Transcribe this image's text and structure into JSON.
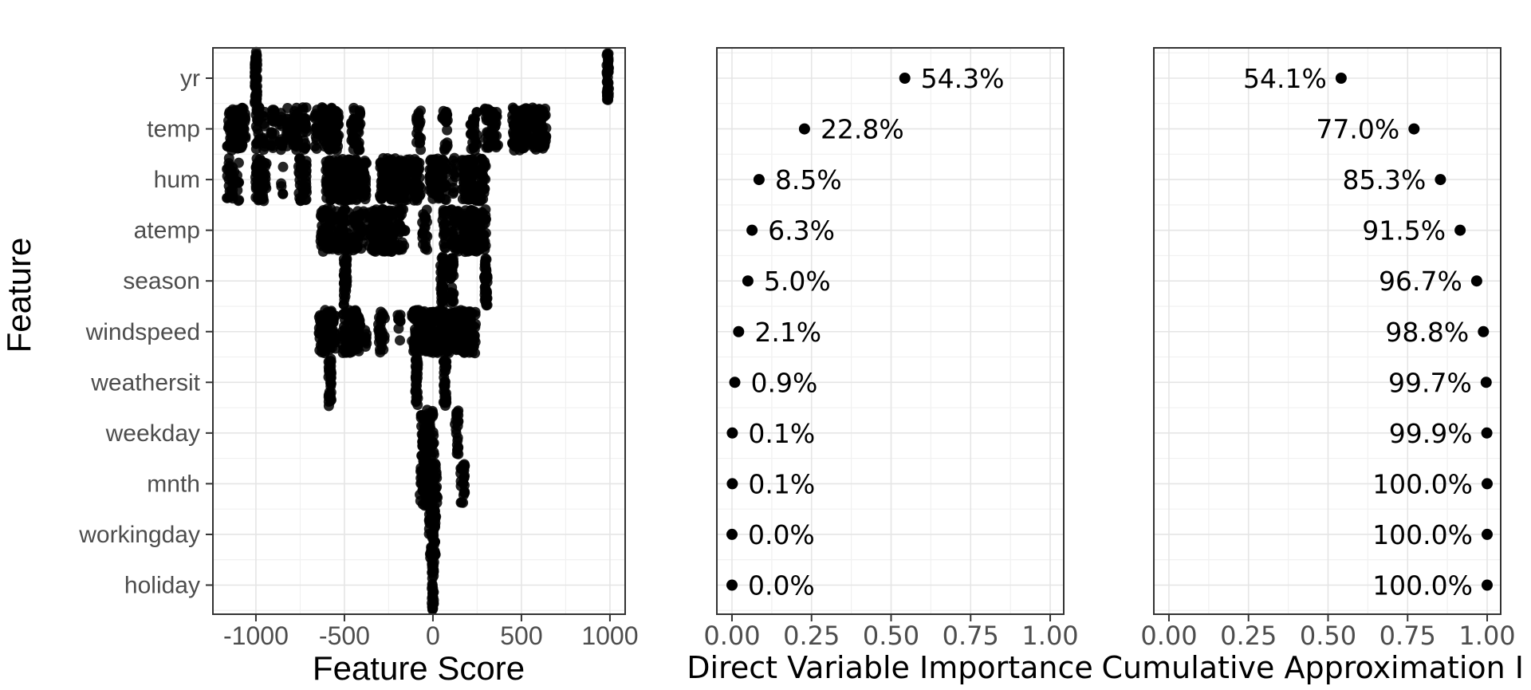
{
  "labels": {
    "y_title": "Feature",
    "x_title_left": "Feature Score",
    "x_title_middle": "Direct Variable Importance",
    "x_title_right": "Cumulative Approximation I"
  },
  "style": {
    "background": "#ffffff",
    "panel_border": "#333333",
    "grid_major": "#e5e5e5",
    "grid_minor": "#f1f1f1",
    "tick_mark": "#333333",
    "axis_text": "#4d4d4d",
    "title_color": "#000000",
    "point_color": "#000000"
  },
  "features": [
    "yr",
    "temp",
    "hum",
    "atemp",
    "season",
    "windspeed",
    "weathersit",
    "weekday",
    "mnth",
    "workingday",
    "holiday"
  ],
  "chart_data": [
    {
      "type": "scatter",
      "subtype": "jittered-strip",
      "title": "",
      "xlabel": "Feature Score",
      "ylabel": "Feature",
      "grid": true,
      "xlim": [
        -1243,
        1086
      ],
      "x_ticks": [
        -1000,
        -500,
        0,
        500,
        1000
      ],
      "x_tick_labels": [
        "-1000",
        "-500",
        "0",
        "500",
        "1000"
      ],
      "categories": [
        "yr",
        "temp",
        "hum",
        "atemp",
        "season",
        "windspeed",
        "weathersit",
        "weekday",
        "mnth",
        "workingday",
        "holiday"
      ],
      "clusters": {
        "yr": [
          [
            -1000,
            7,
            48,
            33
          ],
          [
            988,
            6,
            44,
            31
          ]
        ],
        "temp": [
          [
            -1110,
            52,
            100
          ],
          [
            -990,
            10,
            22
          ],
          [
            -955,
            6,
            12
          ],
          [
            -905,
            11,
            22
          ],
          [
            -860,
            9,
            17
          ],
          [
            -820,
            9,
            17
          ],
          [
            -772,
            16,
            30
          ],
          [
            -726,
            11,
            20
          ],
          [
            -662,
            9,
            15
          ],
          [
            -580,
            48,
            95
          ],
          [
            -436,
            26,
            42
          ],
          [
            -80,
            13,
            20
          ],
          [
            68,
            15,
            22
          ],
          [
            230,
            20,
            28
          ],
          [
            330,
            38,
            52
          ],
          [
            492,
            44,
            80
          ],
          [
            598,
            42,
            80
          ]
        ],
        "hum": [
          [
            -1142,
            22,
            34
          ],
          [
            -1100,
            7,
            8
          ],
          [
            -970,
            33,
            60
          ],
          [
            -852,
            6,
            5
          ],
          [
            -736,
            24,
            38
          ],
          [
            -490,
            115,
            230
          ],
          [
            -215,
            85,
            175
          ],
          [
            -88,
            22,
            38
          ],
          [
            28,
            48,
            80
          ],
          [
            118,
            9,
            12
          ],
          [
            232,
            68,
            130
          ]
        ],
        "atemp": [
          [
            -600,
            36,
            60
          ],
          [
            -512,
            38,
            65
          ],
          [
            -418,
            32,
            42
          ],
          [
            -290,
            72,
            140
          ],
          [
            -176,
            18,
            26
          ],
          [
            -46,
            15,
            22
          ],
          [
            68,
            14,
            20
          ],
          [
            124,
            22,
            34
          ],
          [
            232,
            68,
            130
          ]
        ],
        "season": [
          [
            -495,
            9,
            40,
            31
          ],
          [
            52,
            9,
            38,
            31
          ],
          [
            108,
            9,
            38,
            31
          ],
          [
            300,
            9,
            38,
            31
          ]
        ],
        "windspeed": [
          [
            -596,
            48,
            85
          ],
          [
            -462,
            52,
            95
          ],
          [
            -378,
            7,
            8
          ],
          [
            -292,
            20,
            30
          ],
          [
            -192,
            9,
            10
          ],
          [
            60,
            182,
            380
          ]
        ],
        "weathersit": [
          [
            -582,
            8,
            36,
            31
          ],
          [
            -92,
            8,
            34,
            31
          ],
          [
            68,
            8,
            34,
            31
          ]
        ],
        "weekday": [
          [
            -30,
            38,
            70,
            29
          ],
          [
            134,
            11,
            22,
            29
          ]
        ],
        "mnth": [
          [
            -26,
            52,
            95,
            29
          ],
          [
            168,
            13,
            24,
            29
          ]
        ],
        "workingday": [
          [
            -2,
            20,
            55,
            31
          ]
        ],
        "holiday": [
          [
            0,
            6,
            38,
            31
          ]
        ]
      }
    },
    {
      "type": "scatter",
      "title": "",
      "xlabel": "Direct Variable Importance",
      "grid": true,
      "xlim": [
        -0.0475,
        1.0425
      ],
      "x_ticks": [
        0,
        0.25,
        0.5,
        0.75,
        1
      ],
      "x_tick_labels": [
        "0.00",
        "0.25",
        "0.50",
        "0.75",
        "1.00"
      ],
      "categories": [
        "yr",
        "temp",
        "hum",
        "atemp",
        "season",
        "windspeed",
        "weathersit",
        "weekday",
        "mnth",
        "workingday",
        "holiday"
      ],
      "values": [
        0.543,
        0.228,
        0.085,
        0.063,
        0.05,
        0.021,
        0.009,
        0.001,
        0.001,
        0.0,
        0.0
      ],
      "point_labels": [
        "54.3%",
        "22.8%",
        "8.5%",
        "6.3%",
        "5.0%",
        "2.1%",
        "0.9%",
        "0.1%",
        "0.1%",
        "0.0%",
        "0.0%"
      ],
      "label_side": "right"
    },
    {
      "type": "scatter",
      "title": "",
      "xlabel": "Cumulative Approximation I",
      "grid": true,
      "xlim": [
        -0.0475,
        1.0425
      ],
      "x_ticks": [
        0,
        0.25,
        0.5,
        0.75,
        1
      ],
      "x_tick_labels": [
        "0.00",
        "0.25",
        "0.50",
        "0.75",
        "1.00"
      ],
      "categories": [
        "yr",
        "temp",
        "hum",
        "atemp",
        "season",
        "windspeed",
        "weathersit",
        "weekday",
        "mnth",
        "workingday",
        "holiday"
      ],
      "values": [
        0.541,
        0.77,
        0.853,
        0.915,
        0.967,
        0.988,
        0.997,
        0.999,
        1.0,
        1.0,
        1.0
      ],
      "point_labels": [
        "54.1%",
        "77.0%",
        "85.3%",
        "91.5%",
        "96.7%",
        "98.8%",
        "99.7%",
        "99.9%",
        "100.0%",
        "100.0%",
        "100.0%"
      ],
      "label_side": "left"
    }
  ]
}
